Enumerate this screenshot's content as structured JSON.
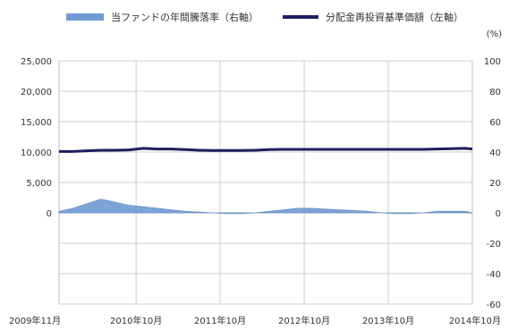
{
  "chart_data": {
    "type": "line",
    "legend": {
      "placement": "top",
      "area_label": "当ファンドの年間騰落率（右軸）",
      "line_label": "分配金再投資基準価額（左軸）"
    },
    "y_left": {
      "ticks": [
        "25,000",
        "20,000",
        "15,000",
        "10,000",
        "5,000",
        "0"
      ],
      "ylim": [
        -15000,
        25000
      ]
    },
    "y_right": {
      "unit": "(%)",
      "ticks": [
        "100",
        "80",
        "60",
        "40",
        "20",
        "0",
        "-20",
        "-40",
        "-60"
      ],
      "ylim": [
        -60,
        100
      ]
    },
    "x_tick_labels": [
      "2009年11月",
      "2010年10月",
      "2011年10月",
      "2012年10月",
      "2013年10月",
      "2014年10月"
    ],
    "grid": true,
    "series": [
      {
        "name": "分配金再投資基準価額（左軸）",
        "axis": "left",
        "color": "#1f1d5f",
        "type": "line",
        "x": [
          "2009-11",
          "2010-01",
          "2010-03",
          "2010-05",
          "2010-07",
          "2010-09",
          "2010-11",
          "2011-01",
          "2011-03",
          "2011-05",
          "2011-07",
          "2011-09",
          "2011-11",
          "2012-01",
          "2012-03",
          "2012-05",
          "2012-07",
          "2012-09",
          "2012-11",
          "2013-01",
          "2013-03",
          "2013-05",
          "2013-07",
          "2013-09",
          "2013-11",
          "2014-01",
          "2014-03",
          "2014-05",
          "2014-07",
          "2014-09",
          "2014-10"
        ],
        "values": [
          10100,
          10100,
          10200,
          10300,
          10300,
          10350,
          10600,
          10500,
          10500,
          10400,
          10300,
          10250,
          10250,
          10250,
          10300,
          10400,
          10450,
          10450,
          10450,
          10450,
          10450,
          10450,
          10450,
          10450,
          10450,
          10450,
          10450,
          10500,
          10550,
          10600,
          10500
        ]
      },
      {
        "name": "当ファンドの年間騰落率（右軸）",
        "axis": "right",
        "color": "#6f9bd4",
        "type": "area",
        "x": [
          "2009-11",
          "2010-01",
          "2010-03",
          "2010-05",
          "2010-07",
          "2010-09",
          "2010-11",
          "2011-01",
          "2011-03",
          "2011-05",
          "2011-07",
          "2011-09",
          "2011-11",
          "2012-01",
          "2012-03",
          "2012-05",
          "2012-07",
          "2012-09",
          "2012-11",
          "2013-01",
          "2013-03",
          "2013-05",
          "2013-07",
          "2013-09",
          "2013-11",
          "2014-01",
          "2014-03",
          "2014-05",
          "2014-07",
          "2014-09",
          "2014-10"
        ],
        "values": [
          1,
          3,
          6,
          9,
          7,
          5,
          4,
          3,
          2,
          1,
          0.5,
          0,
          -0.5,
          -0.5,
          0,
          1,
          2,
          3,
          3,
          2.5,
          2,
          1.5,
          1,
          0,
          -0.5,
          -0.5,
          0,
          1,
          1,
          1,
          0
        ]
      }
    ]
  }
}
